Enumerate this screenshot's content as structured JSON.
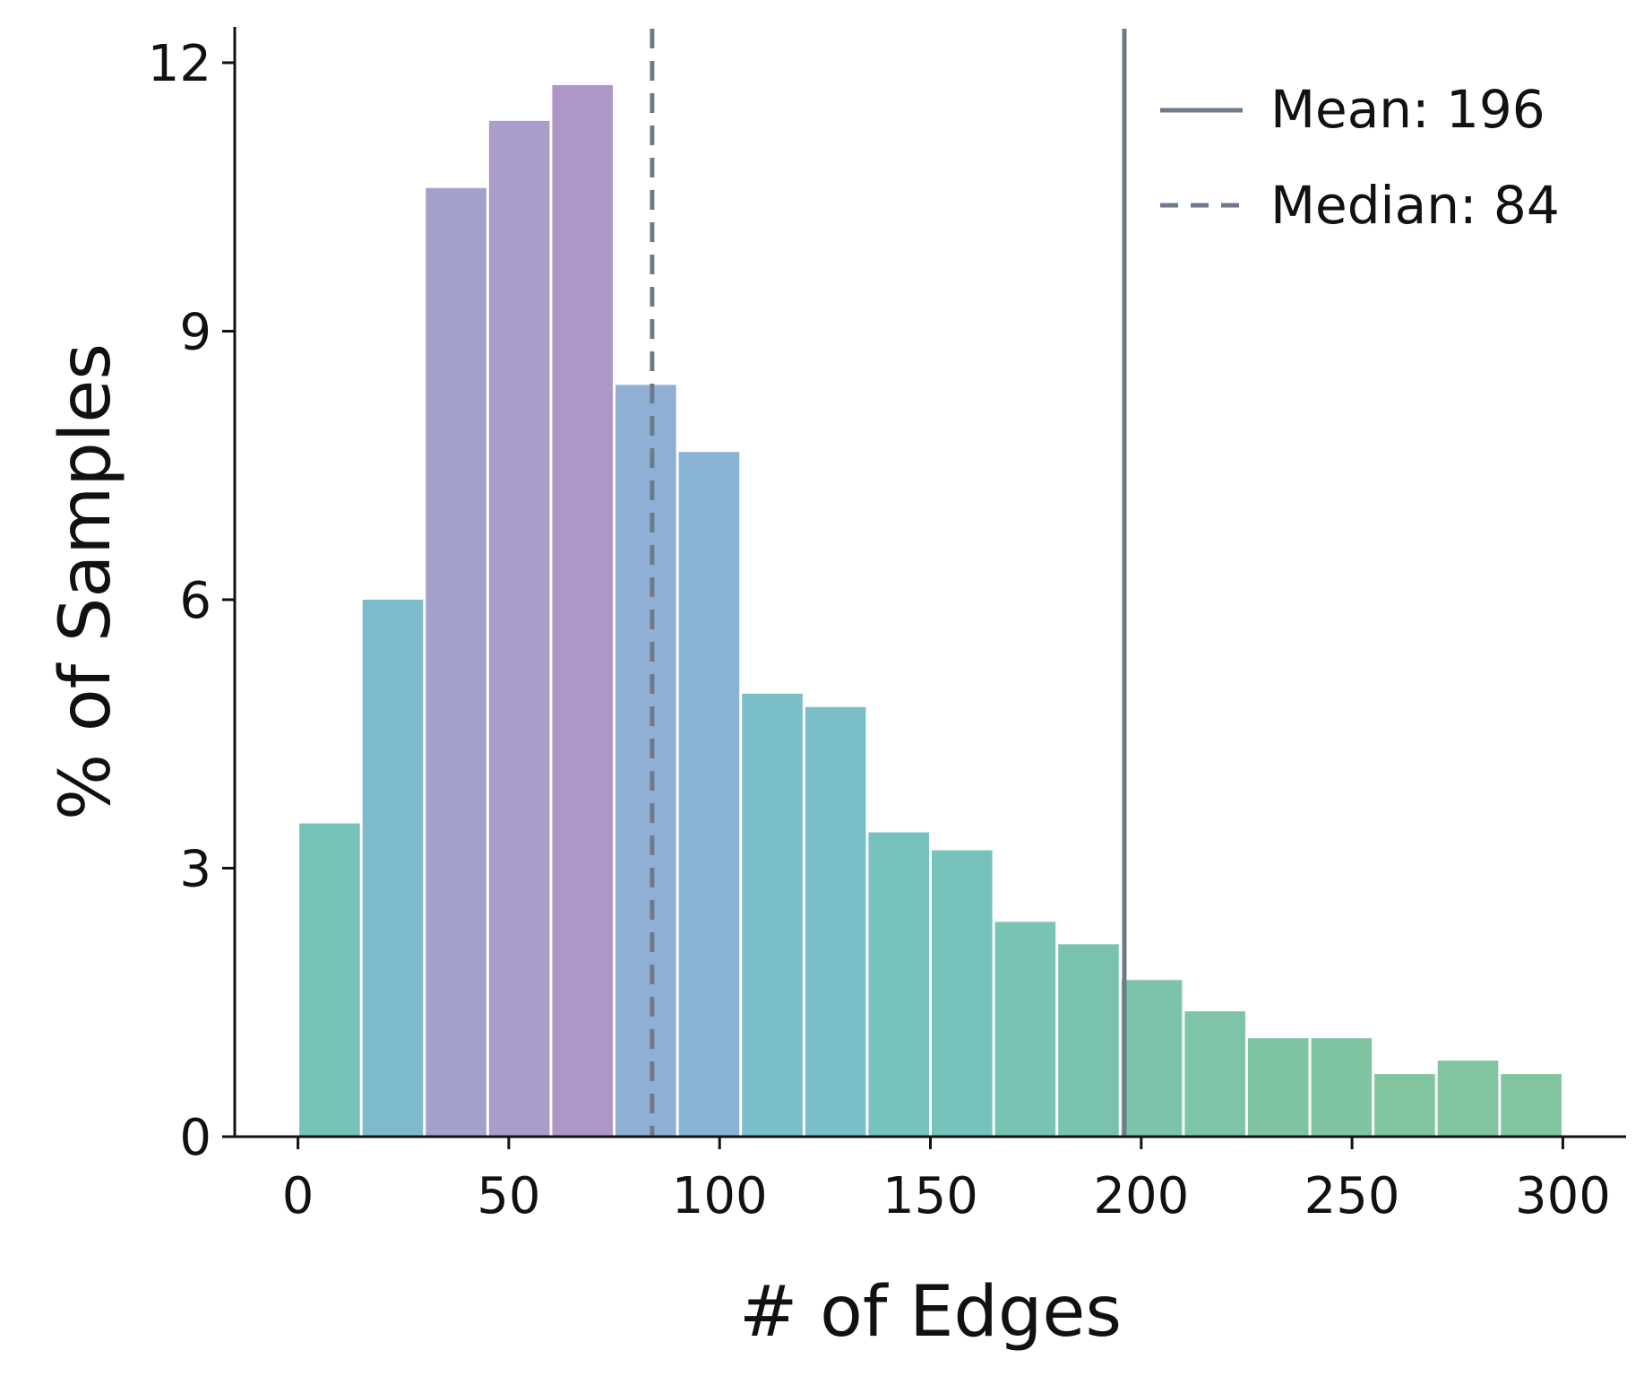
{
  "chart_data": {
    "type": "bar",
    "xlabel": "# of Edges",
    "ylabel": "% of Samples",
    "xlim": [
      -15,
      315
    ],
    "ylim": [
      0,
      12.4
    ],
    "xticks": [
      0,
      50,
      100,
      150,
      200,
      250,
      300
    ],
    "yticks": [
      0,
      3,
      6,
      9,
      12
    ],
    "bin_width": 15,
    "bins": [
      {
        "start": 0,
        "value": 3.5,
        "color": "#76c1b8"
      },
      {
        "start": 15,
        "value": 6.0,
        "color": "#7ebace"
      },
      {
        "start": 30,
        "value": 10.6,
        "color": "#a3a1cc"
      },
      {
        "start": 45,
        "value": 11.35,
        "color": "#aa9ccb"
      },
      {
        "start": 60,
        "value": 11.75,
        "color": "#ae97c8"
      },
      {
        "start": 75,
        "value": 8.4,
        "color": "#90afd4"
      },
      {
        "start": 90,
        "value": 7.65,
        "color": "#88b3d4"
      },
      {
        "start": 105,
        "value": 4.95,
        "color": "#7abec8"
      },
      {
        "start": 120,
        "value": 4.8,
        "color": "#7abfc8"
      },
      {
        "start": 135,
        "value": 3.4,
        "color": "#77c2bd"
      },
      {
        "start": 150,
        "value": 3.2,
        "color": "#77c2ba"
      },
      {
        "start": 165,
        "value": 2.4,
        "color": "#78c3b1"
      },
      {
        "start": 180,
        "value": 2.15,
        "color": "#79c3ae"
      },
      {
        "start": 195,
        "value": 1.75,
        "color": "#7bc4aa"
      },
      {
        "start": 210,
        "value": 1.4,
        "color": "#7ec4a6"
      },
      {
        "start": 225,
        "value": 1.1,
        "color": "#7fc4a2"
      },
      {
        "start": 240,
        "value": 1.1,
        "color": "#7fc4a2"
      },
      {
        "start": 255,
        "value": 0.7,
        "color": "#81c4a0"
      },
      {
        "start": 270,
        "value": 0.85,
        "color": "#82c49f"
      },
      {
        "start": 285,
        "value": 0.7,
        "color": "#82c49f"
      }
    ],
    "reference_lines": [
      {
        "name": "Mean: 196",
        "x": 196,
        "style": "solid",
        "color": "#6e7a8a"
      },
      {
        "name": "Median: 84",
        "x": 84,
        "style": "dashed",
        "color": "#6e7a8a"
      }
    ],
    "legend_position": "top-right",
    "grid": false
  }
}
